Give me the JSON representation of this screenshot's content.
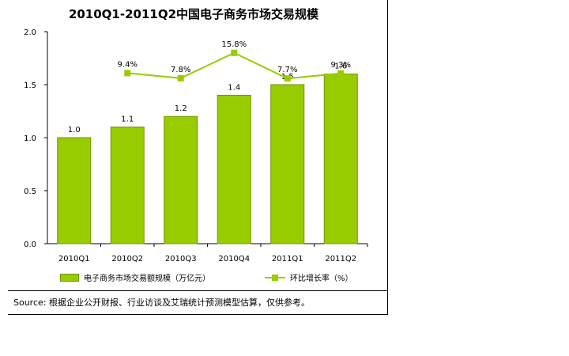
{
  "title": "2010Q1-2011Q2中国电子商务市场交易规模",
  "chart_data": {
    "type": "bar",
    "categories": [
      "2010Q1",
      "2010Q2",
      "2010Q3",
      "2010Q4",
      "2011Q1",
      "2011Q2"
    ],
    "ylim": [
      0,
      2.0
    ],
    "yticks": [
      "0.0",
      "0.5",
      "1.0",
      "1.5",
      "2.0"
    ],
    "grid": false,
    "legend_position": "bottom",
    "series": [
      {
        "name": "电子商务市场交易额规模（万亿元）",
        "type": "bar",
        "values": [
          1.0,
          1.1,
          1.2,
          1.4,
          1.5,
          1.6
        ],
        "labels": [
          "1.0",
          "1.1",
          "1.2",
          "1.4",
          "1.5",
          "1.6"
        ],
        "color": "#99cc00"
      },
      {
        "name": "环比增长率（%）",
        "type": "line",
        "values": [
          null,
          9.4,
          7.8,
          15.8,
          7.7,
          9.3
        ],
        "labels": [
          null,
          "9.4%",
          "7.8%",
          "15.8%",
          "7.7%",
          "9.3%"
        ],
        "color": "#99cc00"
      }
    ]
  },
  "source": "Source: 根据企业公开财报、行业访谈及艾瑞统计预测模型估算，仅供参考。"
}
